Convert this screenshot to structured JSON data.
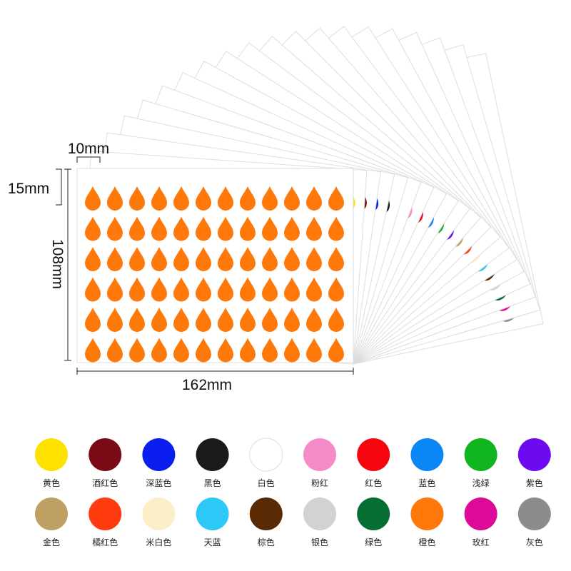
{
  "dimensions": {
    "width": "10mm",
    "height": "15mm",
    "sheet_height": "108mm",
    "sheet_width": "162mm"
  },
  "swatches": [
    {
      "name": "黄色",
      "color": "#ffe100"
    },
    {
      "name": "酒红色",
      "color": "#7a0a14"
    },
    {
      "name": "深蓝色",
      "color": "#0a1ef0"
    },
    {
      "name": "黑色",
      "color": "#1a1a1a"
    },
    {
      "name": "白色",
      "color": "#ffffff"
    },
    {
      "name": "粉红",
      "color": "#f58cc8"
    },
    {
      "name": "红色",
      "color": "#f5060f"
    },
    {
      "name": "蓝色",
      "color": "#0a87f5"
    },
    {
      "name": "浅绿",
      "color": "#0fb41e"
    },
    {
      "name": "紫色",
      "color": "#6e0af0"
    },
    {
      "name": "金色",
      "color": "#bea064"
    },
    {
      "name": "橘红色",
      "color": "#ff3c0f"
    },
    {
      "name": "米白色",
      "color": "#fcefc8"
    },
    {
      "name": "天蓝",
      "color": "#2dc8f5"
    },
    {
      "name": "棕色",
      "color": "#5a2a05"
    },
    {
      "name": "银色",
      "color": "#d2d2d2"
    },
    {
      "name": "绿色",
      "color": "#056e32"
    },
    {
      "name": "橙色",
      "color": "#ff780a"
    },
    {
      "name": "玫红",
      "color": "#dc0a96"
    },
    {
      "name": "灰色",
      "color": "#8c8c8c"
    }
  ]
}
